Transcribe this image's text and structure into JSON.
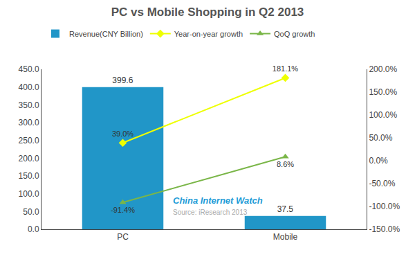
{
  "chart_data": {
    "type": "bar",
    "title": "PC vs Mobile Shopping in Q2 2013",
    "categories": [
      "PC",
      "Mobile"
    ],
    "series": [
      {
        "name": "Revenue(CNY Billion)",
        "type": "bar",
        "color": "#2196C8",
        "values": [
          399.6,
          37.5
        ]
      },
      {
        "name": "Year-on-year growth",
        "type": "line",
        "axis": "y2",
        "color": "#EEFF00",
        "marker": "diamond",
        "values": [
          39.0,
          181.1
        ],
        "value_labels": [
          "39.0%",
          "181.1%"
        ]
      },
      {
        "name": "QoQ growth",
        "type": "line",
        "axis": "y2",
        "color": "#7AB648",
        "marker": "triangle-up",
        "values": [
          -91.4,
          8.6
        ],
        "value_labels": [
          "-91.4%",
          "8.6%"
        ]
      }
    ],
    "ylim": [
      0,
      450
    ],
    "yticks": [
      {
        "value": 0,
        "label": "0.0"
      },
      {
        "value": 50,
        "label": "50.0"
      },
      {
        "value": 100,
        "label": "100.0"
      },
      {
        "value": 150,
        "label": "150.0"
      },
      {
        "value": 200,
        "label": "200.0"
      },
      {
        "value": 250,
        "label": "250.0"
      },
      {
        "value": 300,
        "label": "300.0"
      },
      {
        "value": 350,
        "label": "350.0"
      },
      {
        "value": 400,
        "label": "400.0"
      },
      {
        "value": 450,
        "label": "450.0"
      }
    ],
    "y2lim": [
      -150,
      200
    ],
    "y2ticks": [
      {
        "value": -150,
        "label": "-150.0%"
      },
      {
        "value": -100,
        "label": "-100.0%"
      },
      {
        "value": -50,
        "label": "-50.0%"
      },
      {
        "value": 0,
        "label": "0.0%"
      },
      {
        "value": 50,
        "label": "50.0%"
      },
      {
        "value": 100,
        "label": "100.0%"
      },
      {
        "value": 150,
        "label": "150.0%"
      },
      {
        "value": 200,
        "label": "200.0%"
      }
    ],
    "annotations": [
      {
        "text": "China Internet Watch",
        "color": "#1E9CD7"
      },
      {
        "text": "Source: iResearch 2013",
        "color": "#aaaaaa"
      }
    ],
    "data_labels": true,
    "grid": false,
    "legend": "top"
  }
}
